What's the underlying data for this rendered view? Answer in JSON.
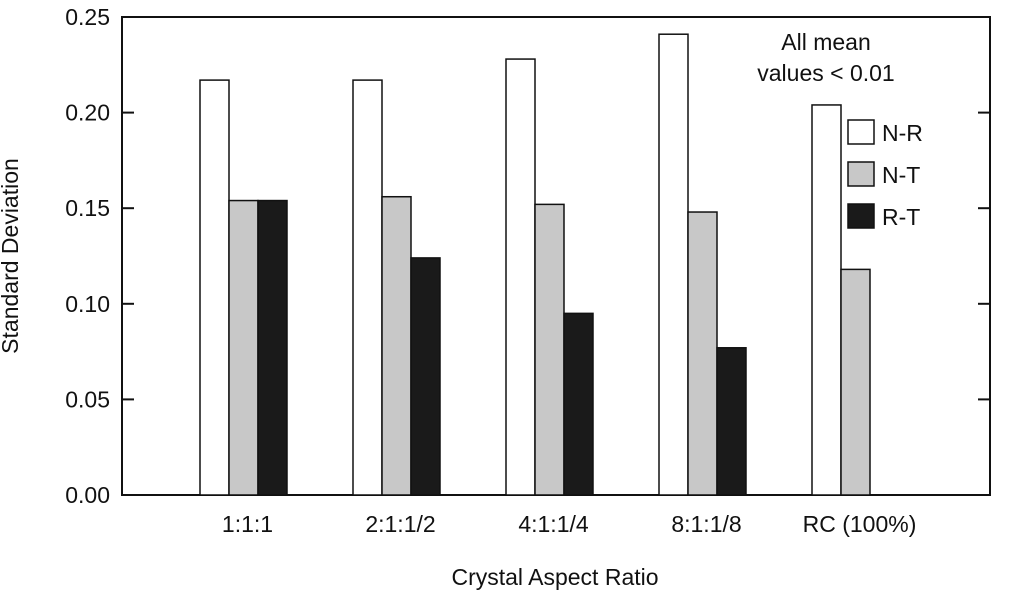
{
  "chart_data": {
    "type": "bar",
    "xlabel": "Crystal Aspect Ratio",
    "ylabel": "Standard Deviation",
    "ylim": [
      0,
      0.25
    ],
    "yticks": [
      "0.00",
      "0.05",
      "0.10",
      "0.15",
      "0.20",
      "0.25"
    ],
    "categories": [
      "1:1:1",
      "2:1:1/2",
      "4:1:1/4",
      "8:1:1/8",
      "RC (100%)"
    ],
    "series": [
      {
        "name": "N-R",
        "color": "#ffffff",
        "values": [
          0.217,
          0.217,
          0.228,
          0.241,
          0.204
        ]
      },
      {
        "name": "N-T",
        "color": "#c8c8c8",
        "values": [
          0.154,
          0.156,
          0.152,
          0.148,
          0.118
        ]
      },
      {
        "name": "R-T",
        "color": "#1a1a1a",
        "values": [
          0.154,
          0.124,
          0.095,
          0.077,
          null
        ]
      }
    ],
    "annotation": [
      "All mean",
      "values < 0.01"
    ],
    "legend_position": "top-right",
    "grid": false
  }
}
